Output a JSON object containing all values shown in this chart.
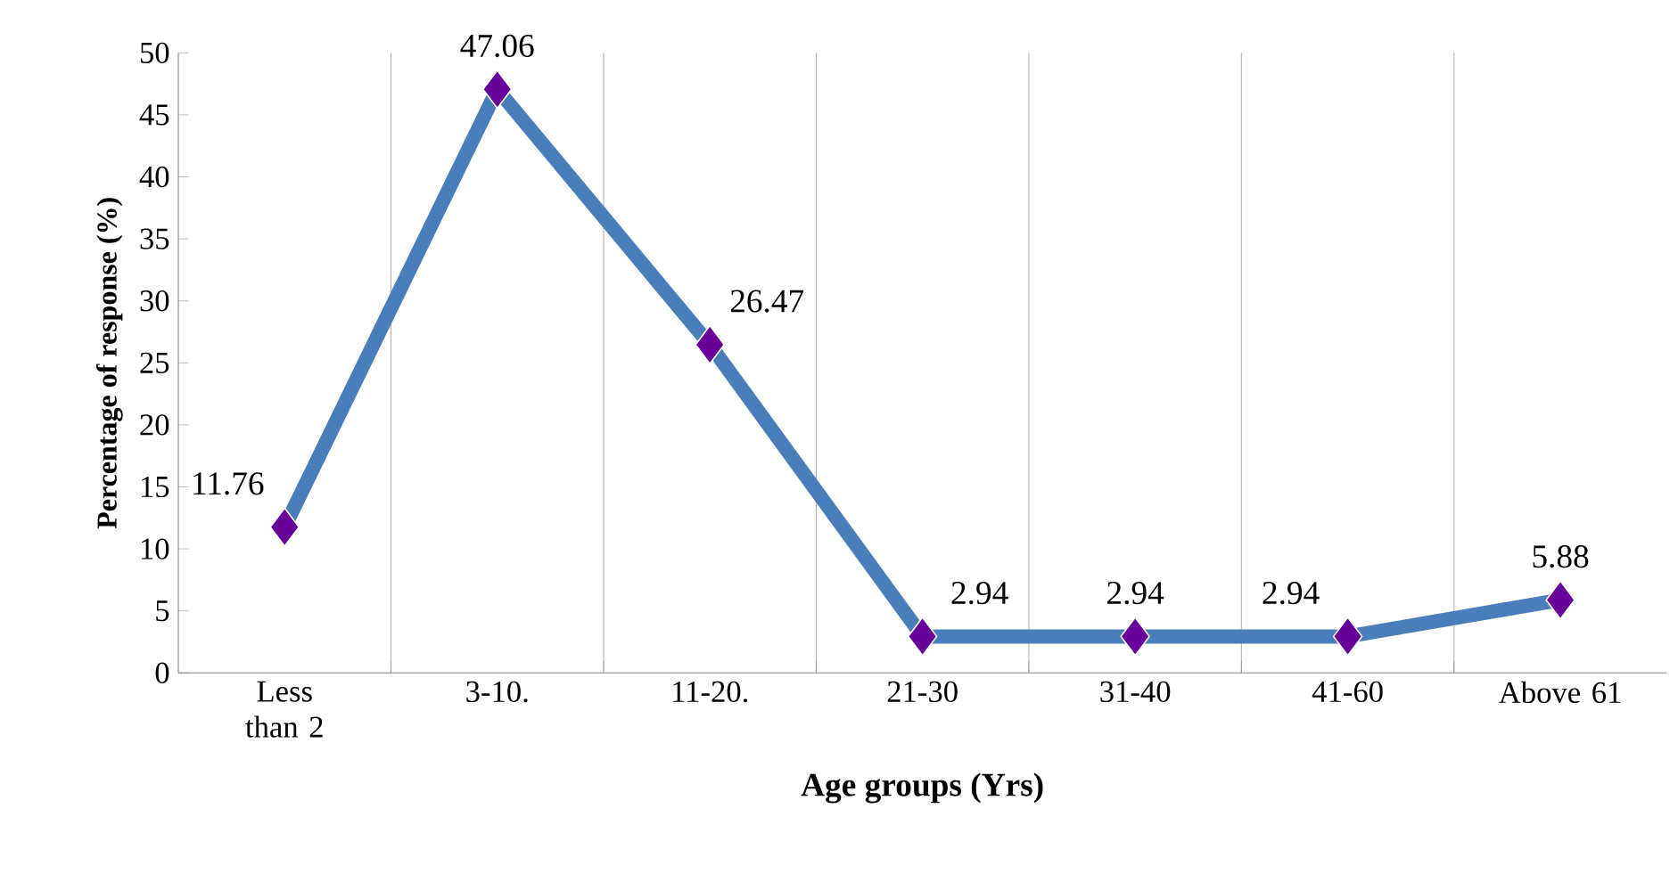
{
  "chart_data": {
    "type": "line",
    "xlabel": "Age groups (Yrs)",
    "ylabel": "Percentage of response (%)",
    "categories": [
      "Less than 2",
      "3-10.",
      "11-20.",
      "21-30",
      "31-40",
      "41-60",
      "Above 61"
    ],
    "series": [
      {
        "color": "#4a7ebb",
        "values": [
          11.76,
          47.06,
          26.47,
          2.94,
          2.94,
          2.94,
          5.88
        ]
      }
    ],
    "ylim": [
      0,
      50
    ],
    "yticks": [
      0,
      5,
      10,
      15,
      20,
      25,
      30,
      35,
      40,
      45,
      50
    ],
    "grid": "x",
    "marker": "diamond",
    "line_style": "solid",
    "data_labels": true
  }
}
